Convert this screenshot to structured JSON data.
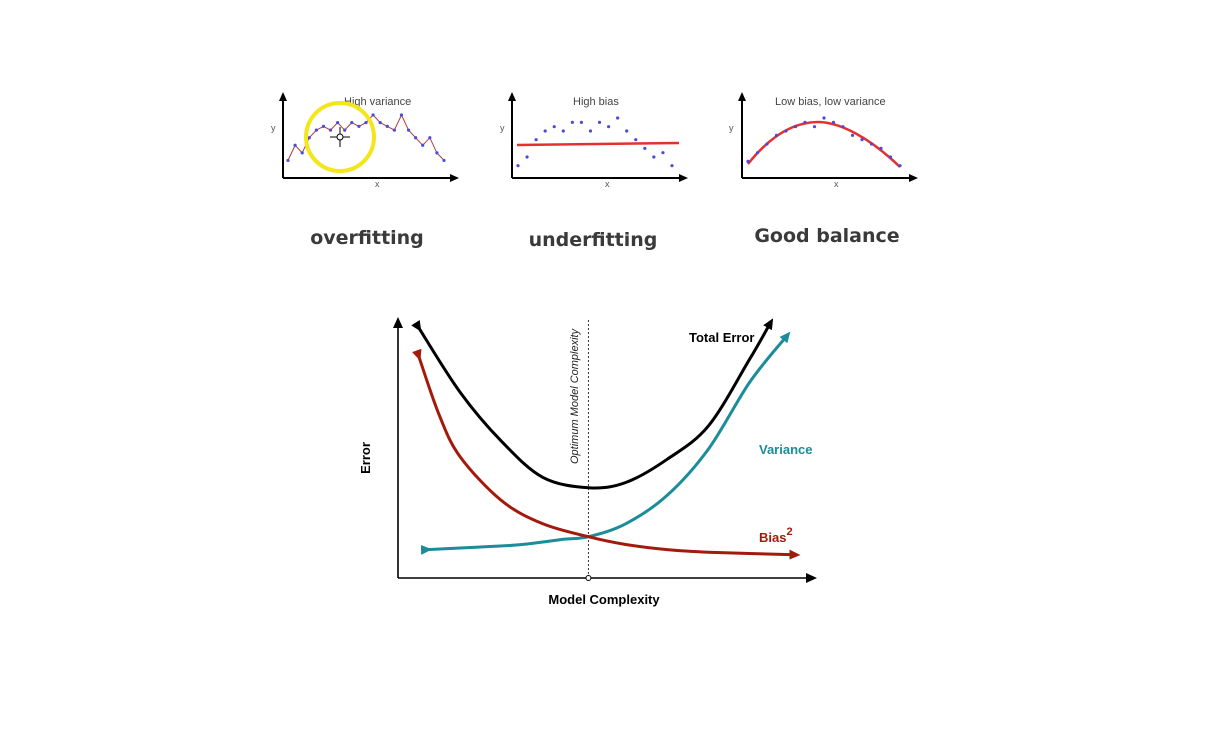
{
  "chart_data": [
    {
      "type": "scatter",
      "title": "High variance",
      "xlabel": "x",
      "ylabel": "y",
      "caption": "overfitting",
      "fit": "jagged line through every point",
      "points": [
        [
          1,
          2
        ],
        [
          2,
          4
        ],
        [
          3,
          3
        ],
        [
          4,
          5
        ],
        [
          5,
          6
        ],
        [
          6,
          6.5
        ],
        [
          7,
          6
        ],
        [
          8,
          7
        ],
        [
          9,
          6
        ],
        [
          10,
          7
        ],
        [
          11,
          6.5
        ],
        [
          12,
          7
        ],
        [
          13,
          8
        ],
        [
          14,
          7
        ],
        [
          15,
          6.5
        ],
        [
          16,
          6
        ],
        [
          17,
          8
        ],
        [
          18,
          6
        ],
        [
          19,
          5
        ],
        [
          20,
          4
        ],
        [
          21,
          5
        ],
        [
          22,
          3
        ],
        [
          23,
          2
        ]
      ],
      "line_color": "#b23a3a",
      "point_color": "#4b4bd8",
      "highlight_color": "#f3e61a"
    },
    {
      "type": "scatter",
      "title": "High bias",
      "xlabel": "x",
      "ylabel": "y",
      "caption": "underfitting",
      "fit": "flat line",
      "points": [
        [
          1,
          2
        ],
        [
          2,
          3
        ],
        [
          3,
          5
        ],
        [
          4,
          6
        ],
        [
          5,
          6.5
        ],
        [
          6,
          6
        ],
        [
          7,
          7
        ],
        [
          8,
          7
        ],
        [
          9,
          6
        ],
        [
          10,
          7
        ],
        [
          11,
          6.5
        ],
        [
          12,
          7.5
        ],
        [
          13,
          6
        ],
        [
          14,
          5
        ],
        [
          15,
          4
        ],
        [
          16,
          3
        ],
        [
          17,
          3.5
        ],
        [
          18,
          2
        ]
      ],
      "line_color": "#e53030",
      "point_color": "#4b4bd8"
    },
    {
      "type": "scatter",
      "title": "Low bias, low variance",
      "xlabel": "x",
      "ylabel": "y",
      "caption": "Good balance",
      "fit": "smooth curve",
      "points": [
        [
          1,
          2
        ],
        [
          2,
          3
        ],
        [
          3,
          4
        ],
        [
          4,
          5
        ],
        [
          5,
          5.5
        ],
        [
          6,
          6
        ],
        [
          7,
          6.5
        ],
        [
          8,
          6
        ],
        [
          9,
          7
        ],
        [
          10,
          6.5
        ],
        [
          11,
          6
        ],
        [
          12,
          5
        ],
        [
          13,
          4.5
        ],
        [
          14,
          4
        ],
        [
          15,
          3.5
        ],
        [
          16,
          2.5
        ],
        [
          17,
          1.5
        ]
      ],
      "line_color": "#e53030",
      "point_color": "#4b4bd8"
    },
    {
      "type": "line",
      "xlabel": "Model Complexity",
      "ylabel": "Error",
      "xlim": [
        0,
        10
      ],
      "ylim": [
        0,
        10
      ],
      "optimum_label": "Optimum Model Complexity",
      "optimum_x": 4.6,
      "series": [
        {
          "name": "Total Error",
          "color": "#000000",
          "x": [
            0.5,
            1.5,
            2.5,
            3.5,
            4.6,
            5.5,
            6.5,
            7.5,
            8.5,
            9.0
          ],
          "y": [
            9.7,
            7.2,
            5.3,
            3.9,
            3.5,
            3.7,
            4.6,
            5.9,
            8.5,
            9.9
          ]
        },
        {
          "name": "Variance",
          "color": "#1a8c9a",
          "x": [
            0.7,
            2.0,
            3.0,
            4.0,
            4.6,
            5.5,
            6.5,
            7.5,
            8.5,
            9.4
          ],
          "y": [
            1.1,
            1.2,
            1.3,
            1.5,
            1.6,
            2.1,
            3.2,
            5.0,
            7.6,
            9.4
          ]
        },
        {
          "name": "Bias",
          "name_superscript": "2",
          "color": "#a31a0c",
          "x": [
            0.5,
            1.0,
            1.5,
            2.5,
            3.5,
            4.6,
            5.5,
            6.5,
            7.5,
            9.6
          ],
          "y": [
            8.6,
            6.3,
            4.7,
            3.0,
            2.1,
            1.6,
            1.3,
            1.1,
            1.0,
            0.9
          ]
        }
      ]
    }
  ]
}
